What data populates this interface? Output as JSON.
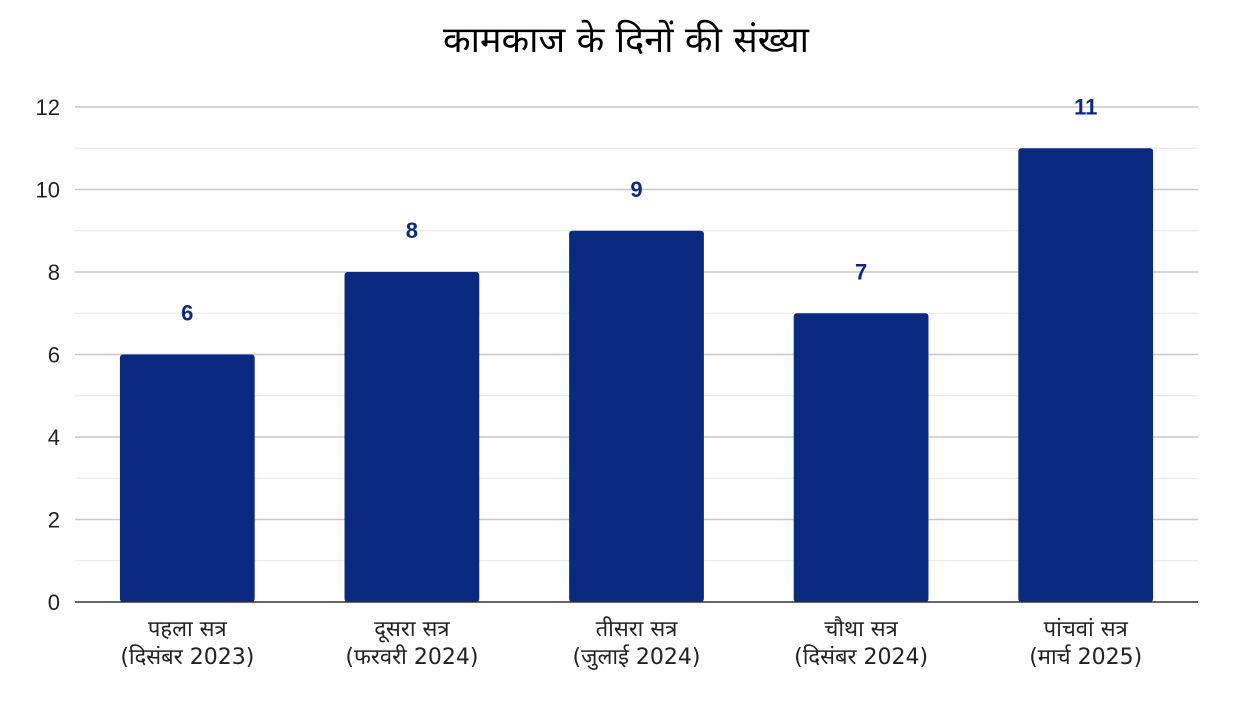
{
  "chart_data": {
    "type": "bar",
    "title": "कामकाज के दिनों की संख्या",
    "xlabel": "",
    "ylabel": "",
    "categories": [
      [
        "पहला सत्र",
        "(दिसंबर 2023)"
      ],
      [
        "दूसरा सत्र",
        "(फरवरी 2024)"
      ],
      [
        "तीसरा सत्र",
        "(जुलाई 2024)"
      ],
      [
        "चौथा सत्र",
        "(दिसंबर 2024)"
      ],
      [
        "पांचवां सत्र",
        "(मार्च 2025)"
      ]
    ],
    "values": [
      6,
      8,
      9,
      7,
      11
    ],
    "data_labels": [
      "6",
      "8",
      "9",
      "7",
      "11"
    ],
    "ylim": [
      0,
      12
    ],
    "yticks": [
      0,
      2,
      4,
      6,
      8,
      10,
      12
    ],
    "minor_gridlines": true,
    "legend": "none",
    "colors": {
      "bar": "#0a2a82",
      "data_label": "#0a2a82",
      "grid_major": "#c8c8c8",
      "grid_minor": "#e6e6e6",
      "axis": "#333333"
    }
  }
}
